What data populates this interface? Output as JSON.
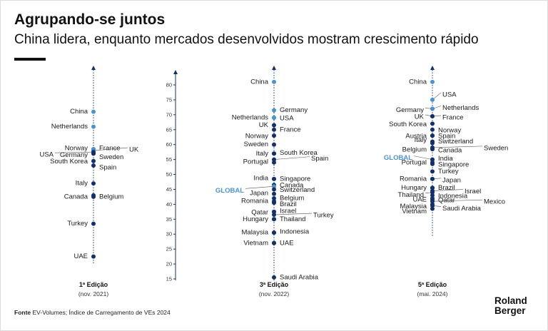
{
  "header": {
    "title": "Agrupando-se juntos",
    "subtitle": "China lidera, enquanto mercados desenvolvidos mostram crescimento rápido"
  },
  "footer": {
    "source_label": "Fonte",
    "source_text": " EV-Volumes; Índice de Carregamento de VEs 2024",
    "logo_line1": "Roland",
    "logo_line2": "Berger"
  },
  "colors": {
    "dark": "#13306e",
    "light": "#4a93d3",
    "global": "#4a93d3",
    "axis": "#13306e",
    "text": "#1a1a1a"
  },
  "chart_data": {
    "type": "scatter",
    "title": "Agrupando-se juntos",
    "axis": {
      "ylim": [
        15,
        80
      ],
      "ticks": [
        15,
        20,
        25,
        30,
        35,
        40,
        45,
        50,
        55,
        60,
        65,
        70,
        75,
        80
      ]
    },
    "series": [
      {
        "name": "1ª Edição",
        "period": "(nov. 2021)",
        "points": [
          {
            "label": "China",
            "value": 71,
            "shade": "light"
          },
          {
            "label": "Netherlands",
            "value": 66,
            "shade": "light"
          },
          {
            "label": "Norway",
            "value": 58.5,
            "shade": "light"
          },
          {
            "label": "France",
            "value": 58.5,
            "shade": "light"
          },
          {
            "label": "UK",
            "value": 58,
            "shade": "light"
          },
          {
            "label": "USA",
            "value": 57.5,
            "shade": "dark"
          },
          {
            "label": "Germany",
            "value": 57,
            "shade": "dark"
          },
          {
            "label": "Sweden",
            "value": 57,
            "shade": "dark"
          },
          {
            "label": "South Korea",
            "value": 54.5,
            "shade": "dark"
          },
          {
            "label": "Spain",
            "value": 53,
            "shade": "dark"
          },
          {
            "label": "Italy",
            "value": 47,
            "shade": "dark"
          },
          {
            "label": "Canada",
            "value": 43,
            "shade": "dark"
          },
          {
            "label": "Belgium",
            "value": 42.5,
            "shade": "dark"
          },
          {
            "label": "Turkey",
            "value": 33.5,
            "shade": "dark"
          },
          {
            "label": "UAE",
            "value": 22.5,
            "shade": "dark"
          }
        ]
      },
      {
        "name": "3ª Edição",
        "period": "(nov. 2022)",
        "points": [
          {
            "label": "China",
            "value": 81,
            "shade": "light"
          },
          {
            "label": "Germany",
            "value": 71.5,
            "shade": "light"
          },
          {
            "label": "Netherlands",
            "value": 69,
            "shade": "light"
          },
          {
            "label": "USA",
            "value": 69,
            "shade": "light"
          },
          {
            "label": "UK",
            "value": 66.5,
            "shade": "dark"
          },
          {
            "label": "France",
            "value": 65,
            "shade": "dark"
          },
          {
            "label": "Norway",
            "value": 63,
            "shade": "dark"
          },
          {
            "label": "Sweden",
            "value": 60,
            "shade": "dark"
          },
          {
            "label": "Italy",
            "value": 57,
            "shade": "dark"
          },
          {
            "label": "South Korea",
            "value": 57,
            "shade": "dark"
          },
          {
            "label": "Spain",
            "value": 55,
            "shade": "dark"
          },
          {
            "label": "Portugal",
            "value": 54,
            "shade": "dark"
          },
          {
            "label": "India",
            "value": 48.5,
            "shade": "dark"
          },
          {
            "label": "Singapore",
            "value": 48.5,
            "shade": "dark"
          },
          {
            "label": "Canada",
            "value": 46.5,
            "shade": "dark"
          },
          {
            "label": "GLOBAL",
            "value": 46,
            "shade": "global"
          },
          {
            "label": "Switzerland",
            "value": 45,
            "shade": "dark"
          },
          {
            "label": "Japan",
            "value": 43.5,
            "shade": "dark"
          },
          {
            "label": "Belgium",
            "value": 42,
            "shade": "dark"
          },
          {
            "label": "Romania",
            "value": 41,
            "shade": "dark"
          },
          {
            "label": "Brazil",
            "value": 40.5,
            "shade": "dark"
          },
          {
            "label": "Qatar",
            "value": 37.5,
            "shade": "dark"
          },
          {
            "label": "Israel",
            "value": 37.5,
            "shade": "dark"
          },
          {
            "label": "Turkey",
            "value": 36.5,
            "shade": "dark"
          },
          {
            "label": "Hungary",
            "value": 35,
            "shade": "dark"
          },
          {
            "label": "Thailand",
            "value": 35,
            "shade": "dark"
          },
          {
            "label": "Malaysia",
            "value": 30.5,
            "shade": "dark"
          },
          {
            "label": "Indonesia",
            "value": 30.5,
            "shade": "dark"
          },
          {
            "label": "Vietnam",
            "value": 27,
            "shade": "dark"
          },
          {
            "label": "UAE",
            "value": 27,
            "shade": "dark"
          },
          {
            "label": "Saudi Arabia",
            "value": 15.5,
            "shade": "dark"
          }
        ]
      },
      {
        "name": "5ª Edição",
        "period": "(mai. 2024)",
        "points": [
          {
            "label": "China",
            "value": 81,
            "shade": "light"
          },
          {
            "label": "USA",
            "value": 75,
            "shade": "light"
          },
          {
            "label": "Germany",
            "value": 72,
            "shade": "light"
          },
          {
            "label": "Netherlands",
            "value": 72,
            "shade": "light"
          },
          {
            "label": "UK",
            "value": 69.5,
            "shade": "dark"
          },
          {
            "label": "France",
            "value": 69.5,
            "shade": "dark"
          },
          {
            "label": "South Korea",
            "value": 67,
            "shade": "dark"
          },
          {
            "label": "Norway",
            "value": 65,
            "shade": "dark"
          },
          {
            "label": "Austria",
            "value": 63,
            "shade": "dark"
          },
          {
            "label": "Spain",
            "value": 63,
            "shade": "dark"
          },
          {
            "label": "Italy",
            "value": 61,
            "shade": "dark"
          },
          {
            "label": "Switzerland",
            "value": 60.5,
            "shade": "dark"
          },
          {
            "label": "Sweden",
            "value": 59,
            "shade": "dark"
          },
          {
            "label": "Belgium",
            "value": 58.5,
            "shade": "dark"
          },
          {
            "label": "Canada",
            "value": 58.5,
            "shade": "dark"
          },
          {
            "label": "GLOBAL",
            "value": 55,
            "shade": "global"
          },
          {
            "label": "India",
            "value": 55,
            "shade": "dark"
          },
          {
            "label": "Portugal",
            "value": 54,
            "shade": "dark"
          },
          {
            "label": "Singapore",
            "value": 53.5,
            "shade": "dark"
          },
          {
            "label": "Turkey",
            "value": 51,
            "shade": "dark"
          },
          {
            "label": "Romania",
            "value": 48.5,
            "shade": "dark"
          },
          {
            "label": "Japan",
            "value": 48.5,
            "shade": "dark"
          },
          {
            "label": "Hungary",
            "value": 45.5,
            "shade": "dark"
          },
          {
            "label": "Brazil",
            "value": 45.5,
            "shade": "dark"
          },
          {
            "label": "Israel",
            "value": 44.5,
            "shade": "dark"
          },
          {
            "label": "Thailand",
            "value": 44,
            "shade": "dark"
          },
          {
            "label": "Indonesia",
            "value": 43,
            "shade": "dark"
          },
          {
            "label": "UAE",
            "value": 42,
            "shade": "dark"
          },
          {
            "label": "Qatar",
            "value": 41.5,
            "shade": "dark"
          },
          {
            "label": "Mexico",
            "value": 41,
            "shade": "dark"
          },
          {
            "label": "Malaysia",
            "value": 40,
            "shade": "dark"
          },
          {
            "label": "Saudi Arabia",
            "value": 39.5,
            "shade": "dark"
          },
          {
            "label": "Vietnam",
            "value": 38.5,
            "shade": "dark"
          }
        ]
      }
    ]
  }
}
